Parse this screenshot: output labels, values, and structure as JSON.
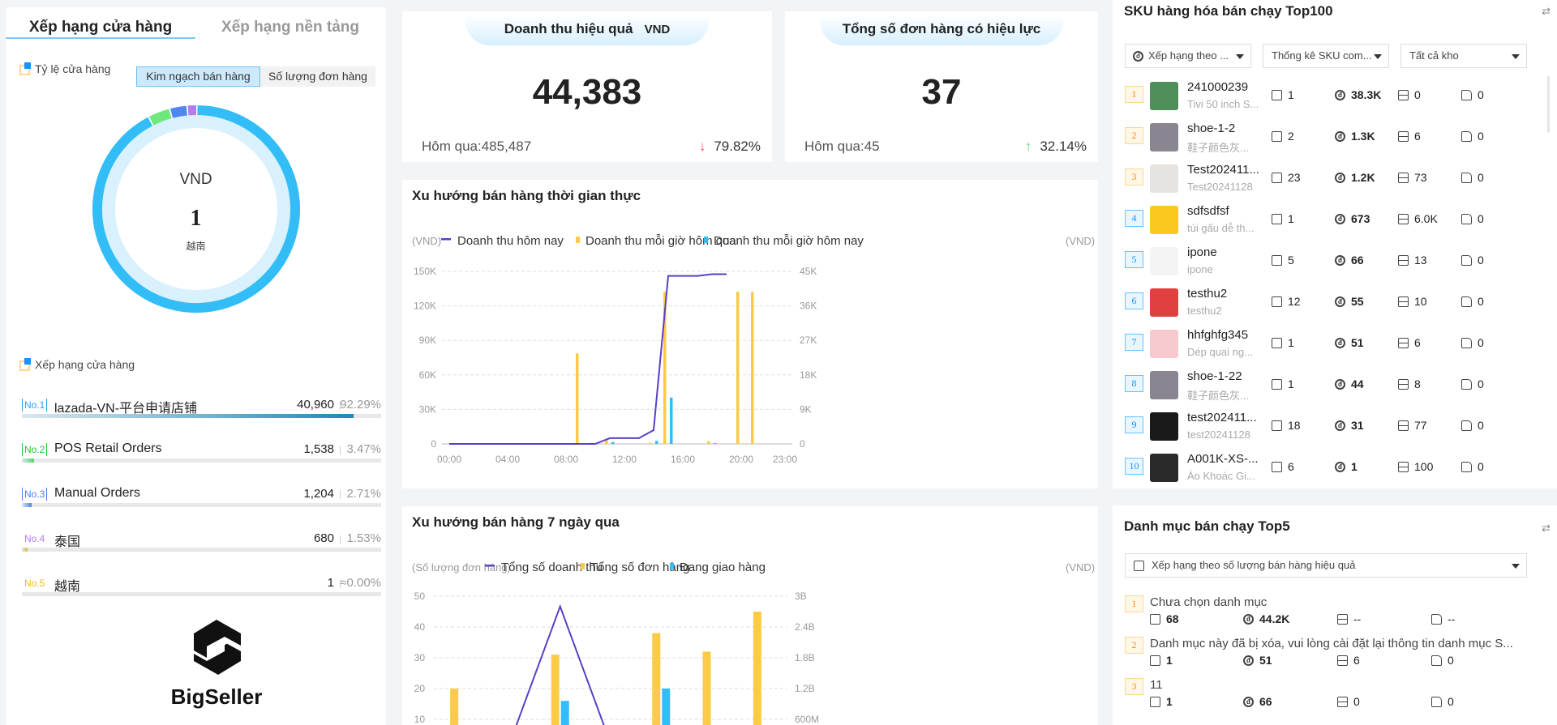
{
  "left": {
    "tabs": [
      "Xếp hạng cửa hàng",
      "Xếp hạng nền tảng"
    ],
    "ratio_label": "Tỷ lệ cửa hàng",
    "toggle": [
      "Kim ngạch bán hàng",
      "Số lượng đơn hàng"
    ],
    "donut": {
      "unit": "VND",
      "rank": "1",
      "name": "越南",
      "segments": [
        {
          "name": "lazada-VN-平台申请店铺",
          "percent": 92.29,
          "color": "#33bdf7"
        },
        {
          "name": "POS Retail Orders",
          "percent": 3.47,
          "color": "#6ee87a"
        },
        {
          "name": "Manual Orders",
          "percent": 2.71,
          "color": "#4f86f0"
        },
        {
          "name": "泰国",
          "percent": 1.53,
          "color": "#b57bf0"
        },
        {
          "name": "越南",
          "percent": 0.0,
          "color": "#f5c842"
        }
      ]
    },
    "ranking_label": "Xếp hạng cửa hàng",
    "ranking": [
      {
        "no": "No.1",
        "name": "lazada-VN-平台申请店铺",
        "value": "40,960",
        "pct": "92.29%",
        "fill": 92.29,
        "color": "#1e88b8"
      },
      {
        "no": "No.2",
        "name": "POS Retail Orders",
        "value": "1,538",
        "pct": "3.47%",
        "fill": 3.47,
        "color": "#55d46a"
      },
      {
        "no": "No.3",
        "name": "Manual Orders",
        "value": "1,204",
        "pct": "2.71%",
        "fill": 2.71,
        "color": "#4f7ee8"
      },
      {
        "no": "No.4",
        "name": "泰国",
        "value": "680",
        "pct": "1.53%",
        "fill": 1.53,
        "color": "#e0b84a"
      },
      {
        "no": "No.5",
        "name": "越南",
        "value": "1",
        "pct": "≈0.00%",
        "fill": 0,
        "color": "#f5c842"
      }
    ],
    "rank_colors": [
      "#2aa0f0",
      "#22c43a",
      "#4f7ee8",
      "#b57bf0",
      "#f2b81c"
    ],
    "logo_text": "BigSeller"
  },
  "kpi": [
    {
      "title": "Doanh thu hiệu quả",
      "unit": "VND",
      "value": "44,383",
      "prev": "Hôm qua:485,487",
      "change": "79.82%",
      "direction": "down"
    },
    {
      "title": "Tổng số đơn hàng có hiệu lực",
      "unit": "",
      "value": "37",
      "prev": "Hôm qua:45",
      "change": "32.14%",
      "direction": "up"
    }
  ],
  "realtime": {
    "title": "Xu hướng bán hàng thời gian thực"
  },
  "weekly": {
    "title": "Xu hướng bán hàng 7 ngày qua"
  },
  "chart_data": [
    {
      "type": "bar+line",
      "title": "Xu hướng bán hàng thời gian thực",
      "ylabel_left": "(VND)",
      "ylabel_right": "(VND)",
      "ylim_left": [
        0,
        150000
      ],
      "ylim_right": [
        0,
        45000
      ],
      "yticks_left": [
        "0",
        "30K",
        "60K",
        "90K",
        "120K",
        "150K"
      ],
      "yticks_right": [
        "0",
        "9K",
        "18K",
        "27K",
        "36K",
        "45K"
      ],
      "xtick_labels": [
        "00:00",
        "04:00",
        "08:00",
        "12:00",
        "16:00",
        "20:00",
        "23:00"
      ],
      "xtick_hours": [
        0,
        4,
        8,
        12,
        16,
        20,
        23
      ],
      "x": [
        0,
        1,
        2,
        3,
        4,
        5,
        6,
        7,
        8,
        9,
        10,
        11,
        12,
        13,
        14,
        15,
        16,
        17,
        18,
        19,
        20,
        21,
        22,
        23
      ],
      "grid": true,
      "legend": "top",
      "series": [
        {
          "name": "Doanh thu hôm nay",
          "kind": "line",
          "axis": "left",
          "color": "#5b3fc4",
          "values": [
            0,
            0,
            0,
            0,
            0,
            0,
            0,
            0,
            0,
            0,
            0,
            5000,
            5000,
            5000,
            12000,
            146000,
            146000,
            146000,
            147500,
            147500,
            null,
            null,
            null,
            null
          ]
        },
        {
          "name": "Doanh thu mỗi giờ hôm qua",
          "kind": "bar",
          "axis": "right",
          "color": "#fbcb45",
          "values": [
            0,
            0,
            0,
            0,
            0,
            0,
            0,
            0,
            0,
            23600,
            300,
            1000,
            0,
            0,
            300,
            39700,
            0,
            0,
            700,
            0,
            39700,
            39700,
            0,
            0
          ]
        },
        {
          "name": "Doanh thu mỗi giờ hôm nay",
          "kind": "bar",
          "axis": "right",
          "color": "#33bdf7",
          "values": [
            0,
            0,
            0,
            0,
            0,
            0,
            0,
            0,
            0,
            0,
            0,
            500,
            0,
            0,
            800,
            12100,
            0,
            0,
            200,
            0,
            0,
            0,
            0,
            0
          ]
        }
      ]
    },
    {
      "type": "bar+line",
      "title": "Xu hướng bán hàng 7 ngày qua",
      "ylabel_left": "(Số lượng đơn hàng)",
      "ylabel_right": "(VND)",
      "ylim_left": [
        0,
        50
      ],
      "ylim_right": [
        0,
        3000000000
      ],
      "yticks_left": [
        "10",
        "20",
        "30",
        "40",
        "50"
      ],
      "yticks_right": [
        "600M",
        "1.2B",
        "1.8B",
        "2.4B",
        "3B"
      ],
      "grid": true,
      "legend": "top",
      "series": [
        {
          "name": "Tổng số doanh thu",
          "kind": "line",
          "axis": "right",
          "color": "#5b3fc4",
          "values": [
            100000000,
            130000000,
            2800000000,
            130000000,
            100000000,
            100000000,
            100000000
          ]
        },
        {
          "name": "Tổng số đơn hàng",
          "kind": "bar",
          "axis": "left",
          "color": "#fbcb45",
          "values": [
            20,
            5,
            31,
            5,
            38,
            32,
            45
          ]
        },
        {
          "name": "Đang giao hàng",
          "kind": "bar",
          "axis": "left",
          "color": "#33bdf7",
          "values": [
            8,
            2,
            16,
            2,
            20,
            3,
            5
          ]
        }
      ]
    }
  ],
  "sku": {
    "title": "SKU hàng hóa bán chạy Top100",
    "filters": [
      "Xếp hạng theo ...",
      "Thống kê SKU com...",
      "Tất cả kho"
    ],
    "items": [
      {
        "rank": "1",
        "name": "241000239",
        "sub": "Tivi 50 inch S...",
        "qty": "1",
        "revenue": "38.3K",
        "stock": "0",
        "transit": "0",
        "thumb": "#4f8f5a"
      },
      {
        "rank": "2",
        "name": "shoe-1-2",
        "sub": "鞋子颜色灰...",
        "qty": "2",
        "revenue": "1.3K",
        "stock": "6",
        "transit": "0",
        "thumb": "#8a8590"
      },
      {
        "rank": "3",
        "name": "Test202411...",
        "sub": "Test20241128",
        "qty": "23",
        "revenue": "1.2K",
        "stock": "73",
        "transit": "0",
        "thumb": "#e6e3e0"
      },
      {
        "rank": "4",
        "name": "sdfsdfsf",
        "sub": "túi gấu dễ th...",
        "qty": "1",
        "revenue": "673",
        "stock": "6.0K",
        "transit": "0",
        "thumb": "#f8c81c"
      },
      {
        "rank": "5",
        "name": "ipone",
        "sub": "ipone",
        "qty": "5",
        "revenue": "66",
        "stock": "13",
        "transit": "0",
        "thumb": "#f4f4f4"
      },
      {
        "rank": "6",
        "name": "testhu2",
        "sub": "testhu2",
        "qty": "12",
        "revenue": "55",
        "stock": "10",
        "transit": "0",
        "thumb": "#e04040"
      },
      {
        "rank": "7",
        "name": "hhfghfg345",
        "sub": "Dép quai ng...",
        "qty": "1",
        "revenue": "51",
        "stock": "6",
        "transit": "0",
        "thumb": "#f6c9cf"
      },
      {
        "rank": "8",
        "name": "shoe-1-22",
        "sub": "鞋子颜色灰...",
        "qty": "1",
        "revenue": "44",
        "stock": "8",
        "transit": "0",
        "thumb": "#8a8590"
      },
      {
        "rank": "9",
        "name": "test202411...",
        "sub": "test20241128",
        "qty": "18",
        "revenue": "31",
        "stock": "77",
        "transit": "0",
        "thumb": "#1a1a1a"
      },
      {
        "rank": "10",
        "name": "A001K-XS-...",
        "sub": "Áo Khoác Gi...",
        "qty": "6",
        "revenue": "1",
        "stock": "100",
        "transit": "0",
        "thumb": "#2a2a2a"
      }
    ]
  },
  "category": {
    "title": "Danh mục bán chạy Top5",
    "filter": "Xếp hạng theo số lượng bán hàng hiệu quả",
    "items": [
      {
        "rank": "1",
        "name": "Chưa chọn danh mục",
        "qty": "68",
        "revenue": "44.2K",
        "stock": "--",
        "transit": "--"
      },
      {
        "rank": "2",
        "name": "Danh mục này đã bị xóa, vui lòng cài đặt lại thông tin danh mục S...",
        "qty": "1",
        "revenue": "51",
        "stock": "6",
        "transit": "0"
      },
      {
        "rank": "3",
        "name": "11",
        "qty": "1",
        "revenue": "66",
        "stock": "0",
        "transit": "0"
      }
    ]
  }
}
